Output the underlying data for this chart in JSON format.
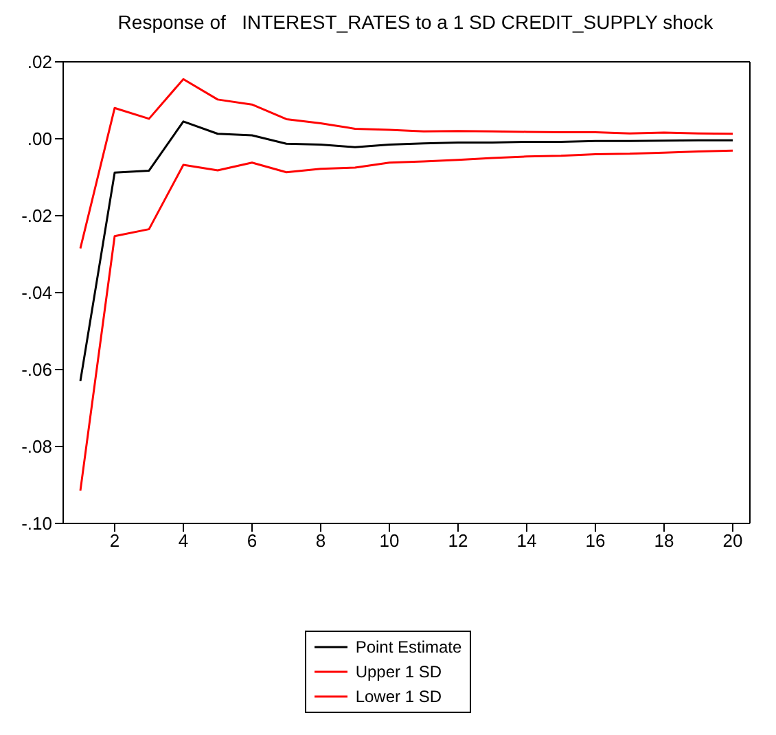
{
  "chart_data": {
    "type": "line",
    "title": "Response of   INTEREST_RATES to a 1 SD CREDIT_SUPPLY shock",
    "x": [
      1,
      2,
      3,
      4,
      5,
      6,
      7,
      8,
      9,
      10,
      11,
      12,
      13,
      14,
      15,
      16,
      17,
      18,
      19,
      20
    ],
    "series": [
      {
        "name": "Point Estimate",
        "color": "#000000",
        "values": [
          -0.063,
          -0.0088,
          -0.0083,
          0.0045,
          0.0013,
          0.0009,
          -0.0013,
          -0.0015,
          -0.0022,
          -0.0015,
          -0.0012,
          -0.001,
          -0.001,
          -0.0008,
          -0.0008,
          -0.0006,
          -0.0006,
          -0.0005,
          -0.0004,
          -0.0004
        ]
      },
      {
        "name": "Upper 1 SD",
        "color": "#ff0000",
        "values": [
          -0.0285,
          0.008,
          0.0052,
          0.0155,
          0.0102,
          0.0089,
          0.0051,
          0.004,
          0.0026,
          0.0023,
          0.0019,
          0.002,
          0.0019,
          0.0018,
          0.0017,
          0.0017,
          0.0014,
          0.0016,
          0.0014,
          0.0013
        ]
      },
      {
        "name": "Lower 1 SD",
        "color": "#ff0000",
        "values": [
          -0.0915,
          -0.0253,
          -0.0235,
          -0.0068,
          -0.0082,
          -0.0062,
          -0.0087,
          -0.0078,
          -0.0075,
          -0.0062,
          -0.0059,
          -0.0055,
          -0.005,
          -0.0046,
          -0.0044,
          -0.004,
          -0.0039,
          -0.0036,
          -0.0033,
          -0.0031
        ]
      }
    ],
    "xlim": [
      0.5,
      20.5
    ],
    "xticks": [
      2,
      4,
      6,
      8,
      10,
      12,
      14,
      16,
      18,
      20
    ],
    "ylim": [
      -0.1,
      0.02
    ],
    "yticks": [
      {
        "value": -0.1,
        "label": "-.10"
      },
      {
        "value": -0.08,
        "label": "-.08"
      },
      {
        "value": -0.06,
        "label": "-.06"
      },
      {
        "value": -0.04,
        "label": "-.04"
      },
      {
        "value": -0.02,
        "label": "-.02"
      },
      {
        "value": 0,
        "label": ".00"
      },
      {
        "value": 0.02,
        "label": ".02"
      }
    ],
    "grid": false,
    "legend": "bottom",
    "marker": "none",
    "line_style": "solid"
  }
}
